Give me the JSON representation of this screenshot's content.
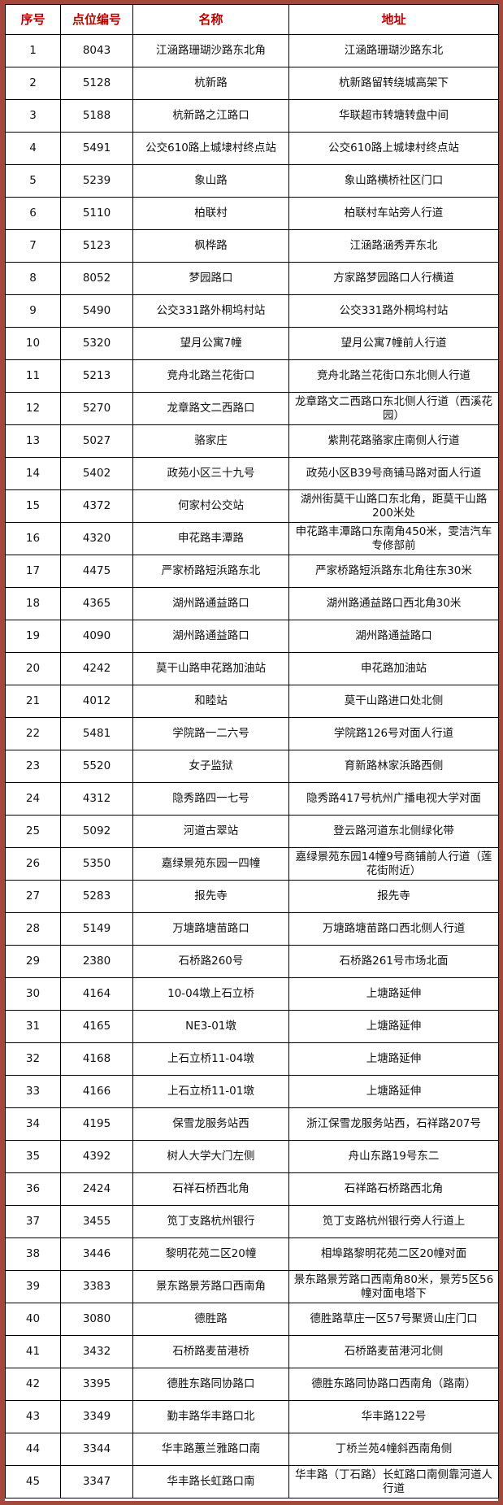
{
  "colors": {
    "border_background": "#a3483d",
    "header_text": "#c00000"
  },
  "headers": [
    "序号",
    "点位编号",
    "名称",
    "地址"
  ],
  "rows": [
    [
      "1",
      "8043",
      "江涵路珊瑚沙路东北角",
      "江涵路珊瑚沙路东北"
    ],
    [
      "2",
      "5128",
      "杭新路",
      "杭新路留转绕城高架下"
    ],
    [
      "3",
      "5188",
      "杭新路之江路口",
      "华联超市转塘转盘中间"
    ],
    [
      "4",
      "5491",
      "公交610路上城埭村终点站",
      "公交610路上城埭村终点站"
    ],
    [
      "5",
      "5239",
      "象山路",
      "象山路横桥社区门口"
    ],
    [
      "6",
      "5110",
      "柏联村",
      "柏联村车站旁人行道"
    ],
    [
      "7",
      "5123",
      "枫桦路",
      "江涵路涵秀弄东北"
    ],
    [
      "8",
      "8052",
      "梦园路口",
      "方家路梦园路口人行横道"
    ],
    [
      "9",
      "5490",
      "公交331路外桐坞村站",
      "公交331路外桐坞村站"
    ],
    [
      "10",
      "5320",
      "望月公寓7幢",
      "望月公寓7幢前人行道"
    ],
    [
      "11",
      "5213",
      "竞舟北路兰花街口",
      "竞舟北路兰花街口东北侧人行道"
    ],
    [
      "12",
      "5270",
      "龙章路文二西路口",
      "龙章路文二西路口东北侧人行道（西溪花园）"
    ],
    [
      "13",
      "5027",
      "骆家庄",
      "紫荆花路骆家庄南侧人行道"
    ],
    [
      "14",
      "5402",
      "政苑小区三十九号",
      "政苑小区B39号商铺马路对面人行道"
    ],
    [
      "15",
      "4372",
      "何家村公交站",
      "湖州街莫干山路口东北角，距莫干山路200米处"
    ],
    [
      "16",
      "4320",
      "申花路丰潭路",
      "申花路丰潭路口东南角450米，雯洁汽车专修部前"
    ],
    [
      "17",
      "4475",
      "严家桥路短浜路东北",
      "严家桥路短浜路东北角往东30米"
    ],
    [
      "18",
      "4365",
      "湖州路通益路口",
      "湖州路通益路口西北角30米"
    ],
    [
      "19",
      "4090",
      "湖州路通益路口",
      "湖州路通益路口"
    ],
    [
      "20",
      "4242",
      "莫干山路申花路加油站",
      "申花路加油站"
    ],
    [
      "21",
      "4012",
      "和睦站",
      "莫干山路进口处北侧"
    ],
    [
      "22",
      "5481",
      "学院路一二六号",
      "学院路126号对面人行道"
    ],
    [
      "23",
      "5520",
      "女子监狱",
      "育新路林家浜路西侧"
    ],
    [
      "24",
      "4312",
      "隐秀路四一七号",
      "隐秀路417号杭州广播电视大学对面"
    ],
    [
      "25",
      "5092",
      "河道古翠站",
      "登云路河道东北侧绿化带"
    ],
    [
      "26",
      "5350",
      "嘉绿景苑东园一四幢",
      "嘉绿景苑东园14幢9号商铺前人行道（莲花街附近）"
    ],
    [
      "27",
      "5283",
      "报先寺",
      "报先寺"
    ],
    [
      "28",
      "5149",
      "万塘路塘苗路口",
      "万塘路塘苗路口西北侧人行道"
    ],
    [
      "29",
      "2380",
      "石桥路260号",
      "石桥路261号市场北面"
    ],
    [
      "30",
      "4164",
      "10-04墩上石立桥",
      "上塘路延伸"
    ],
    [
      "31",
      "4165",
      "NE3-01墩",
      "上塘路延伸"
    ],
    [
      "32",
      "4168",
      "上石立桥11-04墩",
      "上塘路延伸"
    ],
    [
      "33",
      "4166",
      "上石立桥11-01墩",
      "上塘路延伸"
    ],
    [
      "34",
      "4195",
      "保雪龙服务站西",
      "浙江保雪龙服务站西，石祥路207号"
    ],
    [
      "35",
      "4392",
      "树人大学大门左侧",
      "舟山东路19号东二"
    ],
    [
      "36",
      "2424",
      "石祥石桥西北角",
      "石祥路石桥路西北角"
    ],
    [
      "37",
      "3455",
      "笕丁支路杭州银行",
      "笕丁支路杭州银行旁人行道上"
    ],
    [
      "38",
      "3446",
      "黎明花苑二区20幢",
      "相埠路黎明花苑二区20幢对面"
    ],
    [
      "39",
      "3383",
      "景东路景芳路口西南角",
      "景东路景芳路口西南角80米，景芳5区56幢对面电塔下"
    ],
    [
      "40",
      "3080",
      "德胜路",
      "德胜路草庄一区57号聚贤山庄门口"
    ],
    [
      "41",
      "3432",
      "石桥路麦苗港桥",
      "石桥路麦苗港河北侧"
    ],
    [
      "42",
      "3395",
      "德胜东路同协路口",
      "德胜东路同协路口西南角（路南）"
    ],
    [
      "43",
      "3349",
      "勤丰路华丰路口北",
      "华丰路122号"
    ],
    [
      "44",
      "3344",
      "华丰路蕙兰雅路口南",
      "丁桥兰苑4幢斜西南角侧"
    ],
    [
      "45",
      "3347",
      "华丰路长虹路口南",
      "华丰路（丁石路）长虹路口南侧靠河道人行道"
    ]
  ]
}
